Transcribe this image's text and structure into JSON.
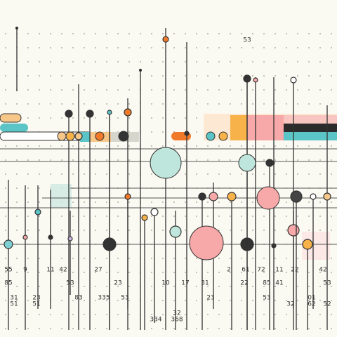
{
  "labels": [
    "53",
    "55",
    "9",
    "11",
    "42",
    "27",
    "2",
    "61",
    "72",
    "11",
    "22",
    "42",
    "85",
    "53",
    "23",
    "10",
    "17",
    "31",
    "22",
    "85",
    "41",
    "53",
    "31",
    "23",
    "83",
    "335",
    "53",
    "23",
    "53",
    "01",
    "51",
    "51",
    "32",
    "62",
    "52",
    "32",
    "334",
    "368"
  ]
}
